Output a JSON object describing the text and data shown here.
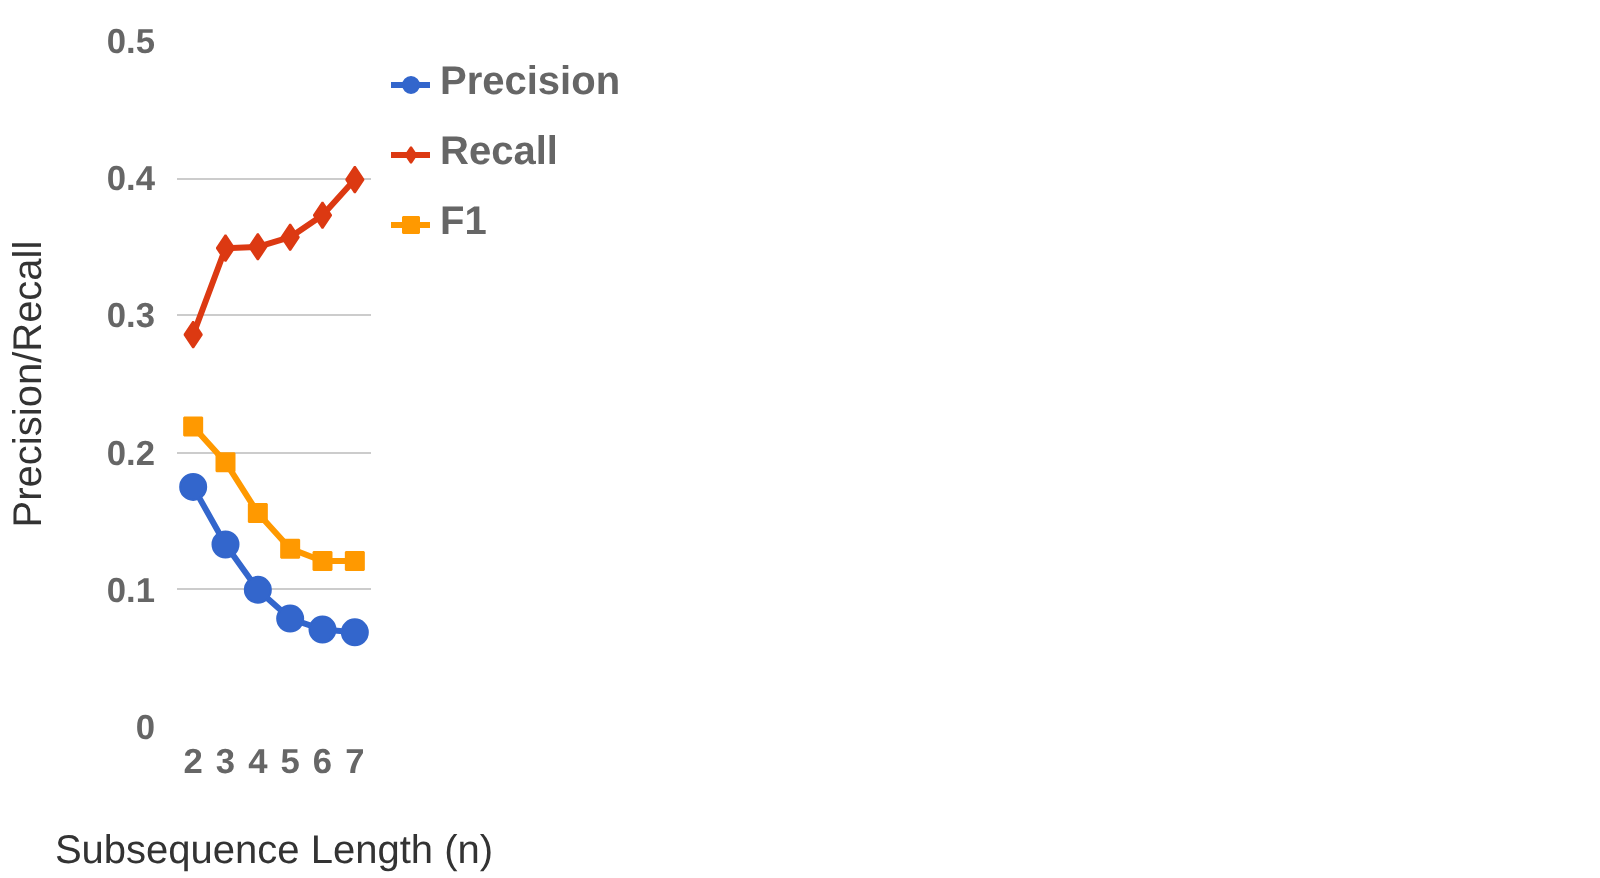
{
  "chart_data": {
    "type": "line",
    "xlabel": "Subsequence Length (n)",
    "ylabel": "Precision/Recall",
    "x": [
      2,
      3,
      4,
      5,
      6,
      7
    ],
    "xlim": [
      1.5,
      7.5
    ],
    "xticks": [
      2,
      3,
      4,
      5,
      6,
      7
    ],
    "ylim": [
      0,
      0.5
    ],
    "yticks": [
      0,
      0.1,
      0.2,
      0.3,
      0.4,
      0.5
    ],
    "grid": "y",
    "legend": "right",
    "line_style": "solid",
    "series": [
      {
        "name": "Precision",
        "color": "#3366cc",
        "marker": "circle",
        "values": [
          0.175,
          0.133,
          0.1,
          0.079,
          0.071,
          0.069
        ]
      },
      {
        "name": "Recall",
        "color": "#dc3912",
        "marker": "diamond",
        "values": [
          0.286,
          0.349,
          0.35,
          0.357,
          0.373,
          0.399
        ]
      },
      {
        "name": "F1",
        "color": "#ff9900",
        "marker": "square",
        "values": [
          0.219,
          0.193,
          0.156,
          0.13,
          0.121,
          0.121
        ]
      }
    ]
  }
}
